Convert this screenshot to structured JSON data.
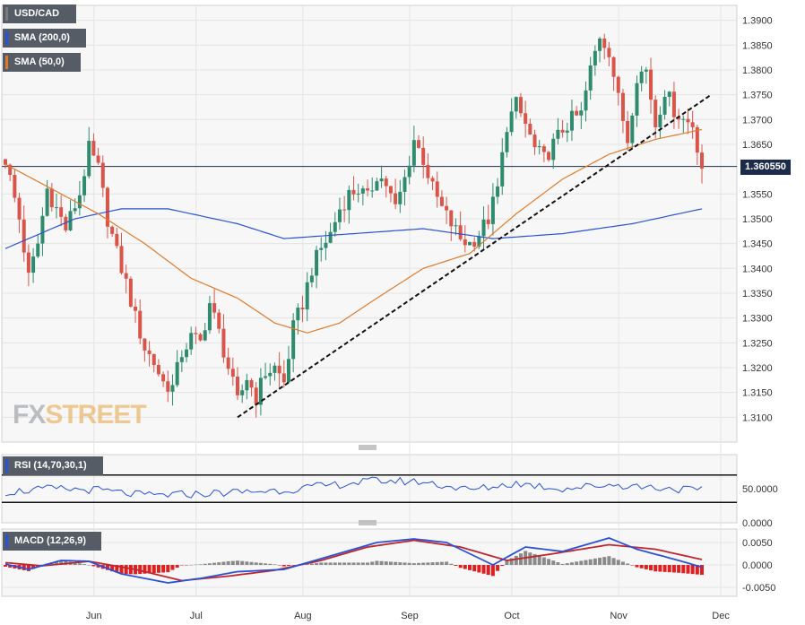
{
  "chart_data": [
    {
      "type": "candlestick",
      "instrument": "USD/CAD",
      "ylim": [
        1.305,
        1.393
      ],
      "y_ticks": [
        "1.3900",
        "1.3850",
        "1.3800",
        "1.3750",
        "1.3700",
        "1.3650",
        "1.3550",
        "1.3500",
        "1.3450",
        "1.3400",
        "1.3350",
        "1.3300",
        "1.3250",
        "1.3200",
        "1.3150",
        "1.3100"
      ],
      "x_ticks": [
        "Jun",
        "Jul",
        "Aug",
        "Sep",
        "Oct",
        "Nov",
        "Dec"
      ],
      "last_price": "1.360550",
      "legend": [
        {
          "label": "USD/CAD",
          "color": "#7a7a7a"
        },
        {
          "label": "SMA (200,0)",
          "color": "#2a52d6"
        },
        {
          "label": "SMA (50,0)",
          "color": "#e07a2a"
        }
      ],
      "colors": {
        "up": "#2e8b6e",
        "down": "#d9554a",
        "sma200": "#2a52d6",
        "sma50": "#e07a2a",
        "trendline": "#111111",
        "price_line": "#1c2b4a"
      },
      "closes_anchors": [
        [
          0,
          1.362
        ],
        [
          3,
          1.35
        ],
        [
          5,
          1.338
        ],
        [
          7,
          1.345
        ],
        [
          9,
          1.356
        ],
        [
          11,
          1.352
        ],
        [
          13,
          1.348
        ],
        [
          16,
          1.355
        ],
        [
          18,
          1.364
        ],
        [
          20,
          1.36
        ],
        [
          22,
          1.35
        ],
        [
          24,
          1.343
        ],
        [
          26,
          1.337
        ],
        [
          28,
          1.33
        ],
        [
          30,
          1.324
        ],
        [
          32,
          1.321
        ],
        [
          34,
          1.317
        ],
        [
          36,
          1.316
        ],
        [
          38,
          1.323
        ],
        [
          40,
          1.326
        ],
        [
          42,
          1.325
        ],
        [
          44,
          1.333
        ],
        [
          46,
          1.327
        ],
        [
          48,
          1.32
        ],
        [
          50,
          1.313
        ],
        [
          52,
          1.318
        ],
        [
          54,
          1.314
        ],
        [
          56,
          1.319
        ],
        [
          58,
          1.32
        ],
        [
          60,
          1.317
        ],
        [
          62,
          1.328
        ],
        [
          64,
          1.333
        ],
        [
          66,
          1.34
        ],
        [
          68,
          1.344
        ],
        [
          70,
          1.347
        ],
        [
          72,
          1.352
        ],
        [
          74,
          1.355
        ],
        [
          76,
          1.356
        ],
        [
          78,
          1.354
        ],
        [
          80,
          1.359
        ],
        [
          82,
          1.357
        ],
        [
          84,
          1.352
        ],
        [
          86,
          1.358
        ],
        [
          88,
          1.366
        ],
        [
          90,
          1.362
        ],
        [
          92,
          1.356
        ],
        [
          94,
          1.352
        ],
        [
          96,
          1.349
        ],
        [
          98,
          1.346
        ],
        [
          100,
          1.345
        ],
        [
          102,
          1.347
        ],
        [
          104,
          1.35
        ],
        [
          106,
          1.356
        ],
        [
          108,
          1.369
        ],
        [
          110,
          1.373
        ],
        [
          112,
          1.369
        ],
        [
          114,
          1.364
        ],
        [
          116,
          1.362
        ],
        [
          118,
          1.365
        ],
        [
          120,
          1.368
        ],
        [
          122,
          1.37
        ],
        [
          124,
          1.371
        ],
        [
          126,
          1.38
        ],
        [
          128,
          1.387
        ],
        [
          130,
          1.384
        ],
        [
          132,
          1.374
        ],
        [
          134,
          1.366
        ],
        [
          136,
          1.379
        ],
        [
          138,
          1.38
        ],
        [
          140,
          1.369
        ],
        [
          142,
          1.376
        ],
        [
          144,
          1.372
        ],
        [
          146,
          1.37
        ],
        [
          148,
          1.369
        ],
        [
          150,
          1.3605
        ]
      ],
      "sma200_anchors": [
        [
          0,
          1.344
        ],
        [
          15,
          1.35
        ],
        [
          25,
          1.352
        ],
        [
          35,
          1.352
        ],
        [
          50,
          1.349
        ],
        [
          60,
          1.346
        ],
        [
          75,
          1.347
        ],
        [
          90,
          1.348
        ],
        [
          105,
          1.346
        ],
        [
          120,
          1.347
        ],
        [
          135,
          1.349
        ],
        [
          150,
          1.352
        ]
      ],
      "sma50_anchors": [
        [
          0,
          1.361
        ],
        [
          10,
          1.356
        ],
        [
          20,
          1.351
        ],
        [
          30,
          1.345
        ],
        [
          40,
          1.338
        ],
        [
          50,
          1.334
        ],
        [
          58,
          1.329
        ],
        [
          65,
          1.327
        ],
        [
          72,
          1.329
        ],
        [
          80,
          1.334
        ],
        [
          90,
          1.34
        ],
        [
          100,
          1.343
        ],
        [
          110,
          1.351
        ],
        [
          120,
          1.358
        ],
        [
          130,
          1.363
        ],
        [
          140,
          1.366
        ],
        [
          150,
          1.368
        ]
      ],
      "trendline": [
        [
          50,
          1.31
        ],
        [
          152,
          1.375
        ]
      ]
    },
    {
      "type": "line",
      "indicator": "RSI (14,70,30,1)",
      "ylim": [
        0,
        100
      ],
      "y_ticks": [
        "50.0000",
        "0.0000"
      ],
      "levels": [
        70,
        30
      ],
      "color": "#2a52d6",
      "values_anchors": [
        [
          0,
          45
        ],
        [
          10,
          50
        ],
        [
          20,
          48
        ],
        [
          30,
          40
        ],
        [
          40,
          42
        ],
        [
          50,
          45
        ],
        [
          60,
          48
        ],
        [
          70,
          55
        ],
        [
          80,
          62
        ],
        [
          90,
          60
        ],
        [
          100,
          48
        ],
        [
          110,
          58
        ],
        [
          120,
          50
        ],
        [
          130,
          56
        ],
        [
          140,
          52
        ],
        [
          150,
          47
        ]
      ]
    },
    {
      "type": "bar+line",
      "indicator": "MACD (12,26,9)",
      "ylim": [
        -0.007,
        0.008
      ],
      "y_ticks": [
        "0.0050",
        "0.0000",
        "-0.0050"
      ],
      "colors": {
        "macd": "#2a52d6",
        "signal": "#c0272d",
        "hist_pos": "#8a8a8a",
        "hist_neg": "#e02020"
      },
      "macd_anchors": [
        [
          0,
          0.0002
        ],
        [
          5,
          -0.001
        ],
        [
          12,
          0.001
        ],
        [
          18,
          0.0008
        ],
        [
          25,
          -0.002
        ],
        [
          35,
          -0.004
        ],
        [
          42,
          -0.003
        ],
        [
          50,
          -0.0015
        ],
        [
          60,
          -0.001
        ],
        [
          70,
          0.002
        ],
        [
          80,
          0.005
        ],
        [
          88,
          0.0058
        ],
        [
          95,
          0.005
        ],
        [
          105,
          0.0
        ],
        [
          112,
          0.004
        ],
        [
          120,
          0.003
        ],
        [
          130,
          0.006
        ],
        [
          136,
          0.0035
        ],
        [
          145,
          0.001
        ],
        [
          150,
          -0.0005
        ]
      ],
      "signal_anchors": [
        [
          0,
          0.0005
        ],
        [
          8,
          -0.0002
        ],
        [
          18,
          0.0008
        ],
        [
          28,
          -0.001
        ],
        [
          38,
          -0.0035
        ],
        [
          48,
          -0.0025
        ],
        [
          58,
          -0.0012
        ],
        [
          68,
          0.001
        ],
        [
          78,
          0.004
        ],
        [
          88,
          0.0055
        ],
        [
          98,
          0.004
        ],
        [
          108,
          0.001
        ],
        [
          118,
          0.0025
        ],
        [
          130,
          0.0045
        ],
        [
          140,
          0.0035
        ],
        [
          150,
          0.0012
        ]
      ]
    }
  ]
}
